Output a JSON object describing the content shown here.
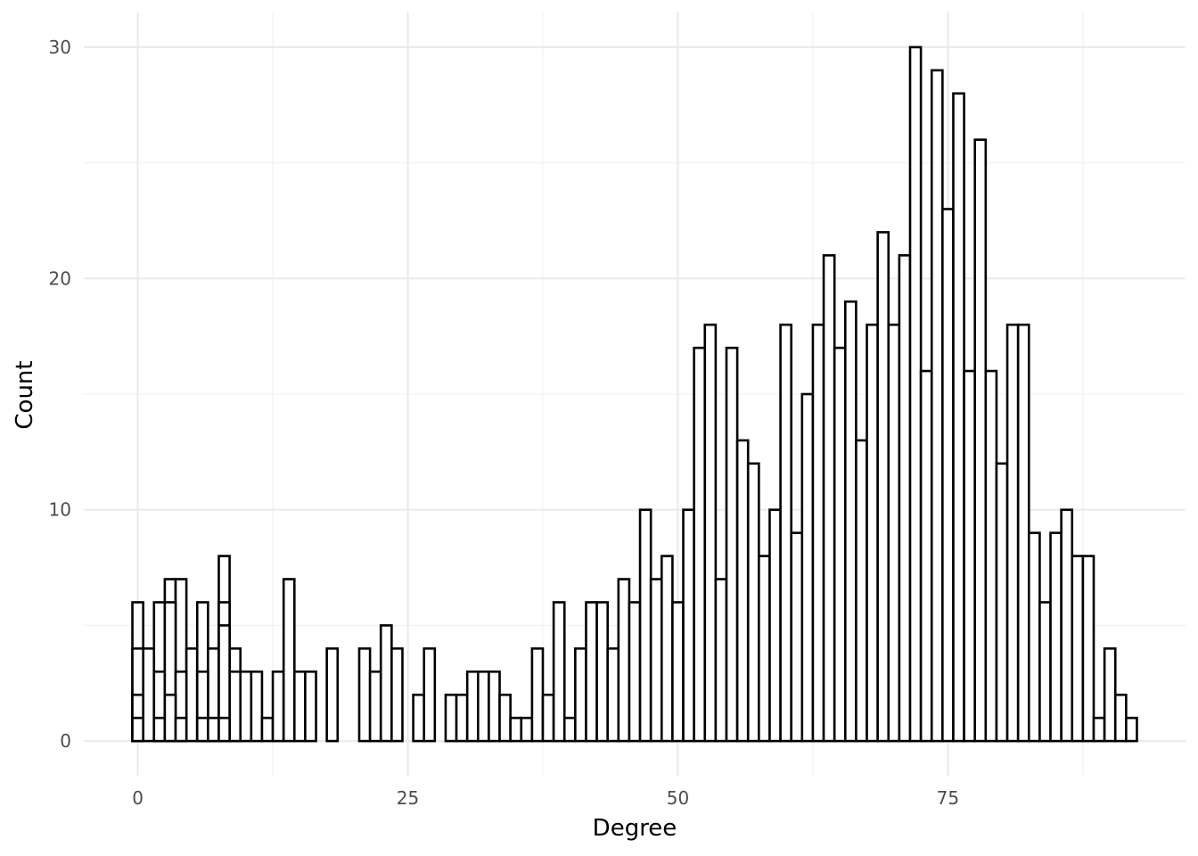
{
  "chart_data": {
    "type": "bar",
    "xlabel": "Degree",
    "ylabel": "Count",
    "x_ticks": [
      0,
      25,
      50,
      75
    ],
    "x_tick_labels": [
      "0",
      "25",
      "50",
      "75"
    ],
    "y_ticks": [
      0,
      10,
      20,
      30
    ],
    "y_tick_labels": [
      "0",
      "10",
      "20",
      "30"
    ],
    "xlim": [
      -5,
      97
    ],
    "ylim": [
      -1.5,
      31.5
    ],
    "grid": true,
    "legend": "none",
    "bar_width": 1,
    "layers": [
      {
        "name": "layer-1",
        "x": [
          0,
          1,
          2,
          3,
          4,
          5,
          6,
          7,
          8,
          9,
          10,
          11,
          12,
          13,
          14,
          15,
          16,
          18,
          21,
          22,
          23,
          24,
          26,
          27,
          29,
          30,
          31,
          32,
          33,
          34,
          35,
          36,
          37,
          38,
          39,
          40,
          41,
          42,
          43,
          44,
          45,
          46,
          47,
          48,
          49,
          50,
          51,
          52,
          53,
          54,
          55,
          56,
          57,
          58,
          59,
          60,
          61,
          62,
          63,
          64,
          65,
          66,
          67,
          68,
          69,
          70,
          71,
          72,
          73,
          74,
          75,
          76,
          77,
          78,
          79,
          80,
          81,
          82,
          83,
          84,
          85,
          86,
          87,
          88,
          89,
          90,
          91,
          92
        ],
        "values": [
          6,
          4,
          6,
          7,
          7,
          4,
          6,
          4,
          8,
          4,
          3,
          3,
          1,
          3,
          7,
          3,
          3,
          4,
          4,
          3,
          5,
          4,
          2,
          4,
          2,
          2,
          3,
          3,
          3,
          2,
          1,
          1,
          4,
          2,
          6,
          1,
          4,
          6,
          6,
          4,
          7,
          6,
          10,
          7,
          8,
          6,
          10,
          17,
          18,
          7,
          17,
          13,
          12,
          8,
          10,
          18,
          9,
          15,
          18,
          21,
          17,
          19,
          13,
          18,
          22,
          18,
          21,
          30,
          16,
          29,
          23,
          28,
          16,
          26,
          16,
          12,
          18,
          18,
          9,
          6,
          9,
          10,
          8,
          8,
          1,
          4,
          2,
          1
        ]
      },
      {
        "name": "layer-2",
        "x": [
          0,
          2,
          3,
          4,
          6,
          8,
          9
        ],
        "values": [
          4,
          3,
          6,
          3,
          3,
          6,
          3
        ]
      },
      {
        "name": "layer-3",
        "x": [
          0,
          2,
          3,
          4,
          6,
          8
        ],
        "values": [
          2,
          1,
          2,
          1,
          1,
          5
        ]
      },
      {
        "name": "layer-4",
        "x": [
          0,
          7,
          8
        ],
        "values": [
          1,
          1,
          1
        ]
      }
    ]
  }
}
